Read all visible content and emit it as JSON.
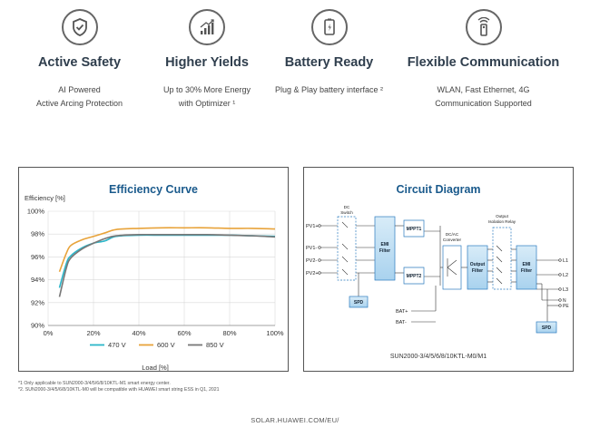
{
  "features": [
    {
      "icon": "shield-check-icon",
      "title": "Active Safety",
      "desc": [
        "AI Powered",
        "Active Arcing Protection"
      ]
    },
    {
      "icon": "rising-bars-icon",
      "title": "Higher Yields",
      "desc": [
        "Up to 30% More Energy",
        "with Optimizer ¹"
      ]
    },
    {
      "icon": "battery-phone-icon",
      "title": "Battery Ready",
      "desc": [
        "Plug & Play battery interface ²"
      ]
    },
    {
      "icon": "wlan-dongle-icon",
      "title": "Flexible Communication",
      "desc": [
        "WLAN, Fast Ethernet, 4G",
        "Communication Supported"
      ]
    }
  ],
  "efficiency": {
    "title": "Efficiency Curve",
    "y_label": "Efficiency  [%]",
    "x_label": "Load [%]"
  },
  "chart_data": {
    "type": "line",
    "title": "Efficiency Curve",
    "xlabel": "Load [%]",
    "ylabel": "Efficiency  [%]",
    "xlim": [
      0,
      100
    ],
    "ylim": [
      90,
      100
    ],
    "x_ticks": [
      "0%",
      "20%",
      "40%",
      "60%",
      "80%",
      "100%"
    ],
    "y_ticks": [
      "90%",
      "92%",
      "94%",
      "96%",
      "98%",
      "100%"
    ],
    "grid": true,
    "legend": "bottom",
    "series": [
      {
        "name": "470 V",
        "color": "#2bb5c8",
        "x": [
          5,
          8,
          10,
          15,
          20,
          25,
          30,
          40,
          50,
          60,
          70,
          80,
          90,
          100
        ],
        "y": [
          93.3,
          95.4,
          96.1,
          96.8,
          97.2,
          97.4,
          97.8,
          97.9,
          97.9,
          97.9,
          97.9,
          97.9,
          97.85,
          97.8
        ]
      },
      {
        "name": "600 V",
        "color": "#e8a33a",
        "x": [
          5,
          8,
          10,
          15,
          20,
          25,
          30,
          40,
          50,
          60,
          70,
          80,
          90,
          100
        ],
        "y": [
          94.7,
          96.3,
          97.0,
          97.5,
          97.8,
          98.1,
          98.4,
          98.5,
          98.55,
          98.55,
          98.55,
          98.5,
          98.5,
          98.45
        ]
      },
      {
        "name": "850 V",
        "color": "#777777",
        "x": [
          5,
          8,
          10,
          15,
          20,
          25,
          30,
          40,
          50,
          60,
          70,
          80,
          90,
          100
        ],
        "y": [
          92.5,
          95.0,
          95.9,
          96.7,
          97.2,
          97.6,
          97.85,
          97.95,
          97.95,
          97.95,
          97.95,
          97.9,
          97.85,
          97.75
        ]
      }
    ]
  },
  "circuit": {
    "title": "Circuit Diagram",
    "model": "SUN2000-3/4/5/6/8/10KTL-M0/M1",
    "labels": {
      "pv1p": "PV1+",
      "pv1m": "PV1-",
      "pv2m": "PV2-",
      "pv2p": "PV2+",
      "dc_switch": [
        "DC",
        "Switch"
      ],
      "emi": [
        "EMI",
        "Filter"
      ],
      "mppt1": "MPPT1",
      "mppt2": "MPPT2",
      "dcac": [
        "DC/AC",
        "Converter"
      ],
      "output_filter": [
        "Output",
        "Filter"
      ],
      "relay": [
        "Output",
        "Isolation Relay"
      ],
      "emi2": [
        "EMI",
        "Filter"
      ],
      "spd": "SPD",
      "spd2": "SPD",
      "bat_p": "BAT+",
      "bat_m": "BAT-",
      "l1": "L1",
      "l2": "L2",
      "l3": "L3",
      "n": "N",
      "pe": "PE"
    }
  },
  "footnotes": [
    "*1 Only applicable to SUN2000-3/4/5/6/8/10KTL-M1 smart energy center.",
    "*2. SUN2000-3/4/5/6/8/10KTL-M0 will be compatible with HUAWEI smart string ESS in Q1, 2021"
  ],
  "footer_url": "SOLAR.HUAWEI.COM/EU/"
}
